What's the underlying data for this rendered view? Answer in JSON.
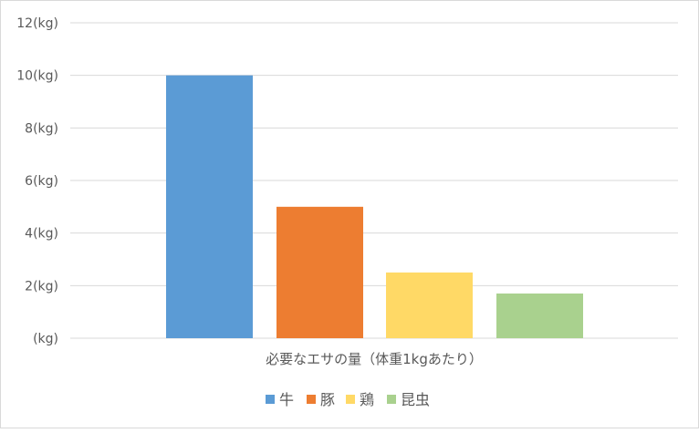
{
  "chart_data": {
    "type": "bar",
    "title": "",
    "categories": [
      "必要なエサの量（体重1kgあたり）"
    ],
    "series": [
      {
        "name": "牛",
        "values": [
          10
        ],
        "color": "#5B9BD5"
      },
      {
        "name": "豚",
        "values": [
          5
        ],
        "color": "#ED7D31"
      },
      {
        "name": "鶏",
        "values": [
          2.5
        ],
        "color": "#FFD966"
      },
      {
        "name": "昆虫",
        "values": [
          1.7
        ],
        "color": "#A9D18E"
      }
    ],
    "yticks": [
      {
        "value": 0,
        "label": "(kg)"
      },
      {
        "value": 2,
        "label": "2(kg)"
      },
      {
        "value": 4,
        "label": "4(kg)"
      },
      {
        "value": 6,
        "label": "6(kg)"
      },
      {
        "value": 8,
        "label": "8(kg)"
      },
      {
        "value": 10,
        "label": "10(kg)"
      },
      {
        "value": 12,
        "label": "12(kg)"
      }
    ],
    "ylim": [
      0,
      12
    ],
    "grid": true,
    "legend": "bottom",
    "xlabel": "",
    "ylabel": ""
  }
}
